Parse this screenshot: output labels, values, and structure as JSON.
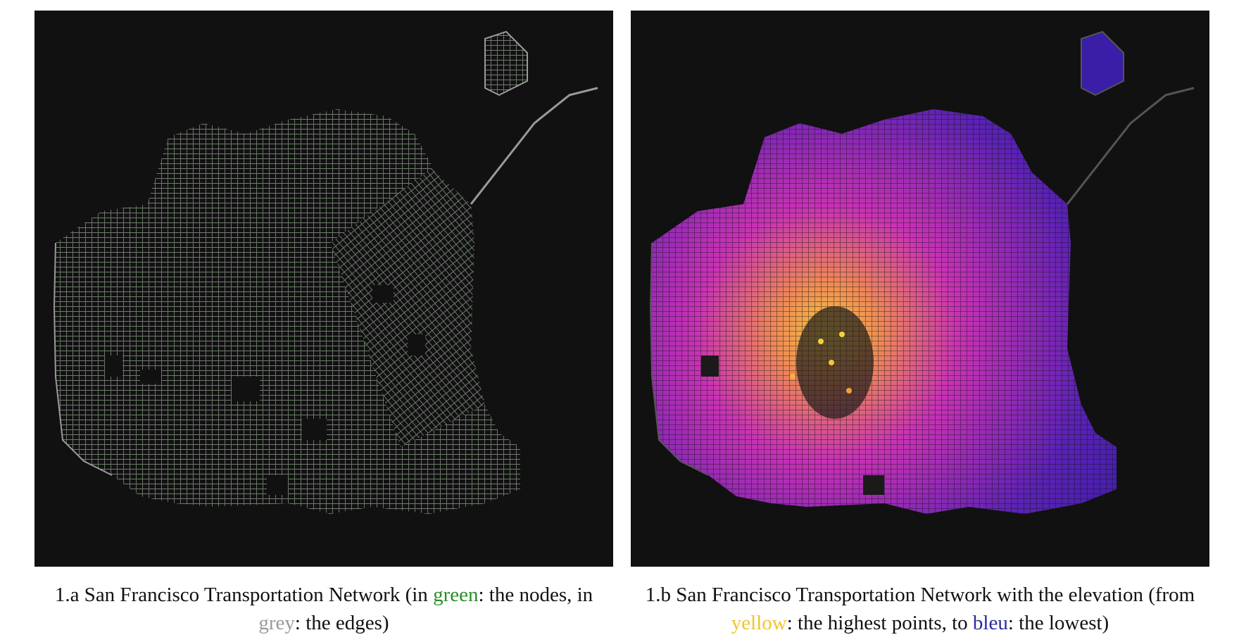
{
  "figures": [
    {
      "id": "1.a",
      "caption_prefix": "1.a San Francisco Transportation Network (in ",
      "caption_green": "green",
      "caption_mid": ": the nodes, in ",
      "caption_grey": "grey",
      "caption_end": ": the edges)",
      "node_color": "#3a9a2a",
      "edge_color": "#9a9a9a"
    },
    {
      "id": "1.b",
      "caption_prefix": "1.b San Francisco Transportation Network with the elevation (from ",
      "caption_yellow": "yellow",
      "caption_mid": ": the highest points, to ",
      "caption_bleu": "bleu",
      "caption_end": ": the lowest)",
      "edge_color": "#555555",
      "gradient_high": "#f5c540",
      "gradient_mid": "#c832b4",
      "gradient_low": "#3a1ea8"
    }
  ]
}
